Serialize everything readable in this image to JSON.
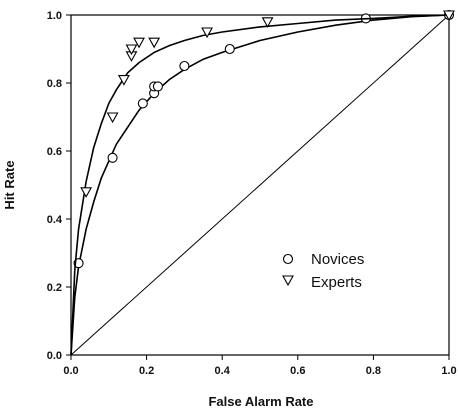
{
  "chart_data": {
    "type": "scatter",
    "xlabel": "False Alarm Rate",
    "ylabel": "Hit Rate",
    "xlim": [
      0.0,
      1.0
    ],
    "ylim": [
      0.0,
      1.0
    ],
    "x_ticks": [
      "0.0",
      "0.2",
      "0.4",
      "0.6",
      "0.8",
      "1.0"
    ],
    "y_ticks": [
      "0.0",
      "0.2",
      "0.4",
      "0.6",
      "0.8",
      "1.0"
    ],
    "grid": false,
    "legend_position": "center-right",
    "series": [
      {
        "name": "Novices",
        "marker": "circle",
        "points": [
          {
            "x": 0.02,
            "y": 0.27
          },
          {
            "x": 0.11,
            "y": 0.58
          },
          {
            "x": 0.19,
            "y": 0.74
          },
          {
            "x": 0.22,
            "y": 0.77
          },
          {
            "x": 0.22,
            "y": 0.79
          },
          {
            "x": 0.23,
            "y": 0.79
          },
          {
            "x": 0.3,
            "y": 0.85
          },
          {
            "x": 0.42,
            "y": 0.9
          },
          {
            "x": 0.78,
            "y": 0.99
          },
          {
            "x": 1.0,
            "y": 1.0
          }
        ],
        "fit_curve": [
          [
            0.0,
            0.0
          ],
          [
            0.01,
            0.17
          ],
          [
            0.02,
            0.26
          ],
          [
            0.04,
            0.37
          ],
          [
            0.06,
            0.45
          ],
          [
            0.08,
            0.52
          ],
          [
            0.1,
            0.57
          ],
          [
            0.12,
            0.62
          ],
          [
            0.15,
            0.67
          ],
          [
            0.18,
            0.72
          ],
          [
            0.22,
            0.77
          ],
          [
            0.26,
            0.81
          ],
          [
            0.3,
            0.84
          ],
          [
            0.35,
            0.87
          ],
          [
            0.4,
            0.89
          ],
          [
            0.5,
            0.925
          ],
          [
            0.6,
            0.95
          ],
          [
            0.7,
            0.97
          ],
          [
            0.8,
            0.985
          ],
          [
            0.9,
            0.995
          ],
          [
            1.0,
            1.0
          ]
        ]
      },
      {
        "name": "Experts",
        "marker": "triangle-down",
        "points": [
          {
            "x": 0.04,
            "y": 0.48
          },
          {
            "x": 0.11,
            "y": 0.7
          },
          {
            "x": 0.14,
            "y": 0.81
          },
          {
            "x": 0.16,
            "y": 0.88
          },
          {
            "x": 0.16,
            "y": 0.9
          },
          {
            "x": 0.18,
            "y": 0.92
          },
          {
            "x": 0.22,
            "y": 0.92
          },
          {
            "x": 0.36,
            "y": 0.95
          },
          {
            "x": 0.52,
            "y": 0.98
          },
          {
            "x": 1.0,
            "y": 1.0
          }
        ],
        "fit_curve": [
          [
            0.0,
            0.0
          ],
          [
            0.01,
            0.25
          ],
          [
            0.02,
            0.37
          ],
          [
            0.04,
            0.51
          ],
          [
            0.06,
            0.61
          ],
          [
            0.08,
            0.68
          ],
          [
            0.1,
            0.74
          ],
          [
            0.12,
            0.78
          ],
          [
            0.15,
            0.83
          ],
          [
            0.18,
            0.86
          ],
          [
            0.22,
            0.89
          ],
          [
            0.26,
            0.91
          ],
          [
            0.3,
            0.925
          ],
          [
            0.35,
            0.94
          ],
          [
            0.4,
            0.95
          ],
          [
            0.5,
            0.965
          ],
          [
            0.6,
            0.975
          ],
          [
            0.7,
            0.985
          ],
          [
            0.8,
            0.99
          ],
          [
            0.9,
            0.996
          ],
          [
            1.0,
            1.0
          ]
        ]
      }
    ],
    "reference_line": {
      "from": [
        0,
        0
      ],
      "to": [
        1,
        1
      ]
    }
  }
}
